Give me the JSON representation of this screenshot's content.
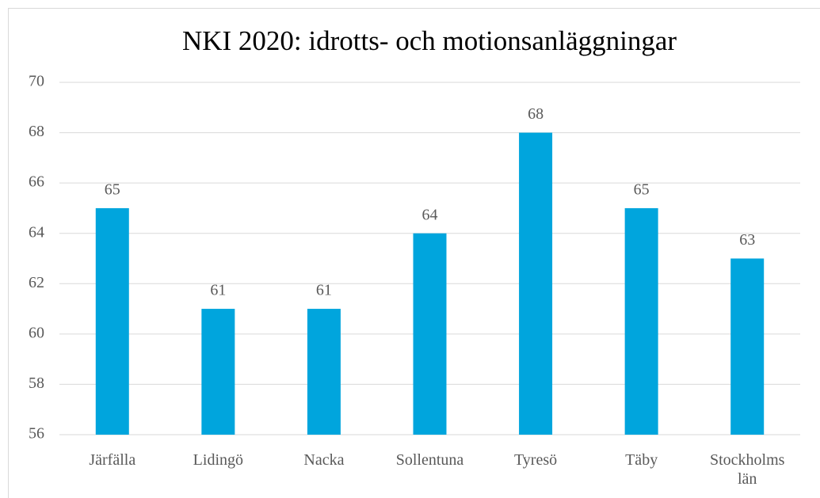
{
  "chart_data": {
    "type": "bar",
    "title": "NKI 2020: idrotts- och motionsanläggningar",
    "categories": [
      "Järfälla",
      "Lidingö",
      "Nacka",
      "Sollentuna",
      "Tyresö",
      "Täby",
      "Stockholms län"
    ],
    "values": [
      65,
      61,
      61,
      64,
      68,
      65,
      63
    ],
    "color": "#00a5dd",
    "ylim": [
      56,
      70
    ],
    "yticks": [
      56,
      58,
      60,
      62,
      64,
      66,
      68,
      70
    ],
    "grid": true
  }
}
